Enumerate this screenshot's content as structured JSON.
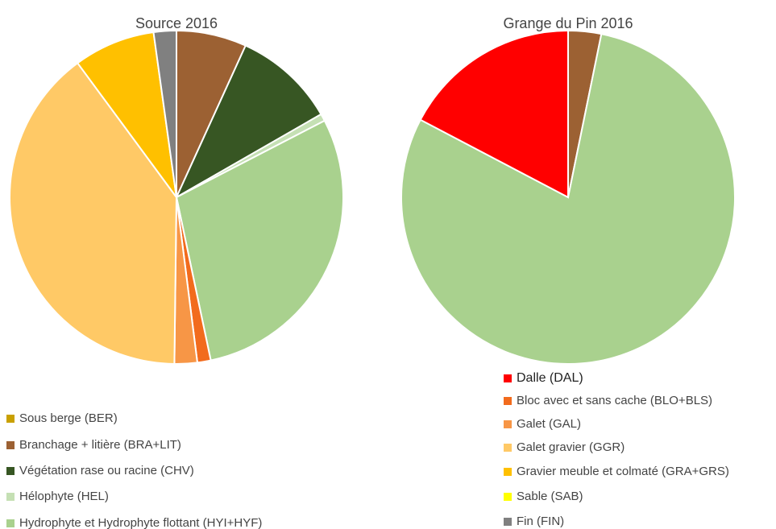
{
  "legend": {
    "items": [
      "Sous berge (BER)",
      "Branchage + litière (BRA+LIT)",
      "Végétation rase ou racine (CHV)",
      "Hélophyte (HEL)",
      "Hydrophyte et Hydrophyte flottant (HYI+HYF)",
      "Dalle (DAL)",
      "Bloc avec et sans cache (BLO+BLS)",
      "Galet (GAL)",
      "Galet gravier (GGR)",
      "Gravier meuble et colmaté (GRA+GRS)",
      "Sable (SAB)",
      "Fin (FIN)"
    ],
    "colors": [
      "#c9a000",
      "#9c6133",
      "#375623",
      "#c5e0b4",
      "#a9d18e",
      "#ff0000",
      "#f26b1d",
      "#f79646",
      "#ffc966",
      "#ffc000",
      "#ffff00",
      "#808080"
    ]
  },
  "chart_data": [
    {
      "type": "pie",
      "title": "Source 2016",
      "values": [
        0,
        6.8,
        9.9,
        0.7,
        29.3,
        0,
        1.3,
        2.2,
        39.7,
        7.9,
        0,
        2.2
      ]
    },
    {
      "type": "pie",
      "title": "Grange du Pin 2016",
      "values": [
        0,
        3.2,
        0,
        0,
        79.5,
        17.3,
        0,
        0,
        0,
        0,
        0,
        0
      ]
    }
  ]
}
